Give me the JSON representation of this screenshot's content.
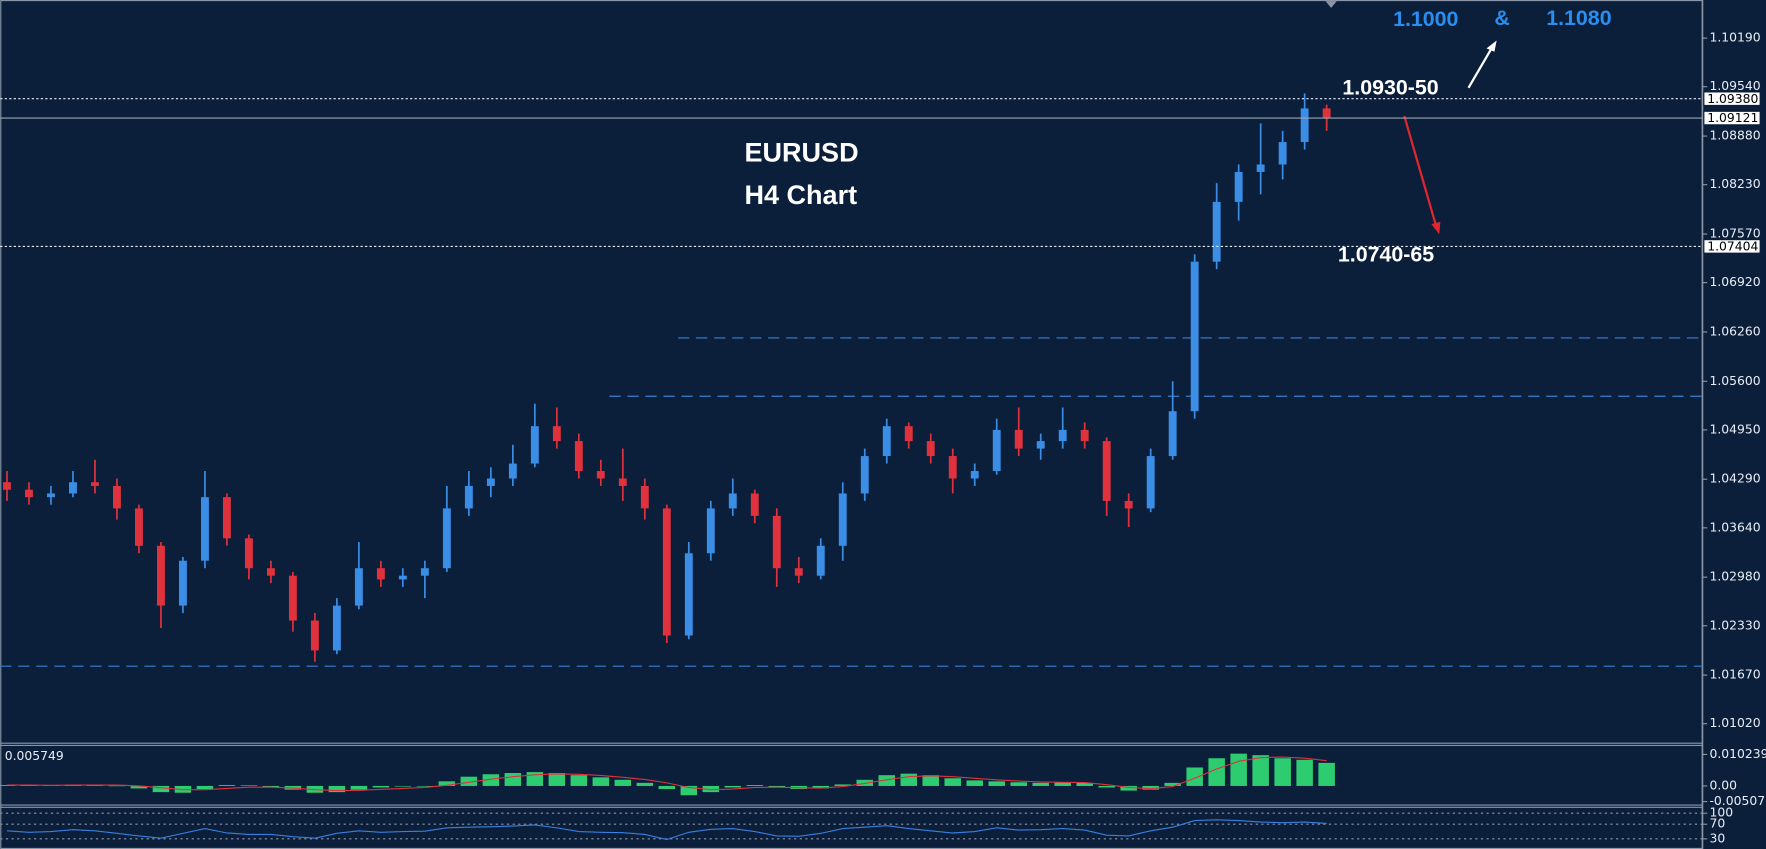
{
  "chart_data": [
    {
      "type": "candlestick",
      "title": "EURUSD",
      "subtitle": "H4 Chart",
      "up_color": "#3a8ee6",
      "down_color": "#e0323c",
      "candles": [
        [
          1.0425,
          1.044,
          1.04,
          1.0415
        ],
        [
          1.0415,
          1.0425,
          1.0395,
          1.0405
        ],
        [
          1.0405,
          1.042,
          1.0395,
          1.041
        ],
        [
          1.041,
          1.044,
          1.0405,
          1.0425
        ],
        [
          1.0425,
          1.0455,
          1.041,
          1.042
        ],
        [
          1.042,
          1.043,
          1.0375,
          1.039
        ],
        [
          1.039,
          1.0395,
          1.033,
          1.034
        ],
        [
          1.034,
          1.0345,
          1.023,
          1.026
        ],
        [
          1.026,
          1.0325,
          1.025,
          1.032
        ],
        [
          1.032,
          1.044,
          1.031,
          1.0405
        ],
        [
          1.0405,
          1.041,
          1.034,
          1.035
        ],
        [
          1.035,
          1.0355,
          1.0295,
          1.031
        ],
        [
          1.031,
          1.032,
          1.029,
          1.03
        ],
        [
          1.03,
          1.0305,
          1.0225,
          1.024
        ],
        [
          1.024,
          1.025,
          1.0185,
          1.02
        ],
        [
          1.02,
          1.027,
          1.0195,
          1.026
        ],
        [
          1.026,
          1.0345,
          1.0255,
          1.031
        ],
        [
          1.031,
          1.032,
          1.0285,
          1.0295
        ],
        [
          1.0295,
          1.031,
          1.0285,
          1.03
        ],
        [
          1.03,
          1.032,
          1.027,
          1.031
        ],
        [
          1.031,
          1.042,
          1.0305,
          1.039
        ],
        [
          1.039,
          1.044,
          1.038,
          1.042
        ],
        [
          1.042,
          1.0445,
          1.0405,
          1.043
        ],
        [
          1.043,
          1.0475,
          1.042,
          1.045
        ],
        [
          1.045,
          1.053,
          1.0445,
          1.05
        ],
        [
          1.05,
          1.0525,
          1.047,
          1.048
        ],
        [
          1.048,
          1.049,
          1.043,
          1.044
        ],
        [
          1.044,
          1.0455,
          1.042,
          1.043
        ],
        [
          1.043,
          1.047,
          1.04,
          1.042
        ],
        [
          1.042,
          1.043,
          1.0375,
          1.039
        ],
        [
          1.039,
          1.0395,
          1.021,
          1.022
        ],
        [
          1.022,
          1.0345,
          1.0215,
          1.033
        ],
        [
          1.033,
          1.04,
          1.032,
          1.039
        ],
        [
          1.039,
          1.043,
          1.038,
          1.041
        ],
        [
          1.041,
          1.0415,
          1.037,
          1.038
        ],
        [
          1.038,
          1.039,
          1.0285,
          1.031
        ],
        [
          1.031,
          1.0325,
          1.029,
          1.03
        ],
        [
          1.03,
          1.035,
          1.0295,
          1.034
        ],
        [
          1.034,
          1.0425,
          1.032,
          1.041
        ],
        [
          1.041,
          1.047,
          1.04,
          1.046
        ],
        [
          1.046,
          1.051,
          1.045,
          1.05
        ],
        [
          1.05,
          1.0505,
          1.047,
          1.048
        ],
        [
          1.048,
          1.049,
          1.045,
          1.046
        ],
        [
          1.046,
          1.047,
          1.041,
          1.043
        ],
        [
          1.043,
          1.045,
          1.042,
          1.044
        ],
        [
          1.044,
          1.051,
          1.0435,
          1.0495
        ],
        [
          1.0495,
          1.0525,
          1.046,
          1.047
        ],
        [
          1.047,
          1.049,
          1.0455,
          1.048
        ],
        [
          1.048,
          1.0525,
          1.047,
          1.0495
        ],
        [
          1.0495,
          1.0505,
          1.047,
          1.048
        ],
        [
          1.048,
          1.0485,
          1.038,
          1.04
        ],
        [
          1.04,
          1.041,
          1.0365,
          1.039
        ],
        [
          1.039,
          1.047,
          1.0385,
          1.046
        ],
        [
          1.046,
          1.056,
          1.0455,
          1.052
        ],
        [
          1.052,
          1.073,
          1.051,
          1.072
        ],
        [
          1.072,
          1.0825,
          1.071,
          1.08
        ],
        [
          1.08,
          1.085,
          1.0775,
          1.084
        ],
        [
          1.084,
          1.0905,
          1.081,
          1.085
        ],
        [
          1.085,
          1.0895,
          1.083,
          1.088
        ],
        [
          1.088,
          1.0945,
          1.087,
          1.0925
        ],
        [
          1.0925,
          1.093,
          1.0895,
          1.0912
        ]
      ],
      "ylim": [
        1.0076,
        1.107
      ],
      "yticks": [
        {
          "value": 1.1019,
          "label": "1.10190"
        },
        {
          "value": 1.0954,
          "label": "1.09540"
        },
        {
          "value": 1.0888,
          "label": "1.08880"
        },
        {
          "value": 1.0823,
          "label": "1.08230"
        },
        {
          "value": 1.0757,
          "label": "1.07570"
        },
        {
          "value": 1.0692,
          "label": "1.06920"
        },
        {
          "value": 1.0626,
          "label": "1.06260"
        },
        {
          "value": 1.056,
          "label": "1.05600"
        },
        {
          "value": 1.0495,
          "label": "1.04950"
        },
        {
          "value": 1.0429,
          "label": "1.04290"
        },
        {
          "value": 1.0364,
          "label": "1.03640"
        },
        {
          "value": 1.0298,
          "label": "1.02980"
        },
        {
          "value": 1.0233,
          "label": "1.02330"
        },
        {
          "value": 1.0167,
          "label": "1.01670"
        },
        {
          "value": 1.0102,
          "label": "1.01020"
        }
      ],
      "levels": [
        {
          "value": 1.0938,
          "label": "1.09380",
          "style": "dotted"
        },
        {
          "value": 1.09121,
          "label": "1.09121",
          "style": "solid"
        },
        {
          "value": 1.07404,
          "label": "1.07404",
          "style": "dotted"
        }
      ],
      "guide_levels": [
        1.0618,
        1.054,
        1.0179
      ],
      "guide_color": "#3a7fd5",
      "annotations": [
        "1.0930-50",
        "1.0740-65",
        "1.1000",
        "&",
        "1.1080"
      ]
    },
    {
      "type": "macd",
      "current_value_label": "0.005749",
      "histogram": {
        "color": "#2ecc71",
        "values": [
          0.0003,
          0.0002,
          0.0002,
          0.0004,
          0.0004,
          0.0001,
          -0.0008,
          -0.002,
          -0.0022,
          -0.001,
          0.0003,
          0.0002,
          -0.0005,
          -0.0012,
          -0.0022,
          -0.002,
          -0.0012,
          -0.0005,
          -0.0002,
          0,
          0.0015,
          0.003,
          0.0038,
          0.0042,
          0.0045,
          0.0042,
          0.0035,
          0.0028,
          0.002,
          0.001,
          -0.001,
          -0.003,
          -0.002,
          -0.0005,
          0.0003,
          -0.0005,
          -0.001,
          -0.0008,
          0.0005,
          0.002,
          0.0035,
          0.004,
          0.0035,
          0.0025,
          0.0018,
          0.0015,
          0.0012,
          0.001,
          0.0012,
          0.001,
          -0.0005,
          -0.0015,
          -0.0012,
          0.001,
          0.006,
          0.009,
          0.0105,
          0.01,
          0.009,
          0.0085,
          0.0075
        ]
      },
      "signal": {
        "color": "#e0323c",
        "values": [
          0.0003,
          0.0003,
          0.0002,
          0.0003,
          0.0003,
          0.0003,
          0,
          -0.0006,
          -0.0012,
          -0.0012,
          -0.0008,
          -0.0004,
          -0.0004,
          -0.0007,
          -0.0012,
          -0.0015,
          -0.0014,
          -0.0011,
          -0.0008,
          -0.0005,
          0.0002,
          0.0012,
          0.0022,
          0.003,
          0.0036,
          0.0039,
          0.0038,
          0.0034,
          0.0028,
          0.0021,
          0.001,
          -0.0005,
          -0.0012,
          -0.001,
          -0.0005,
          -0.0004,
          -0.0006,
          -0.0007,
          -0.0002,
          0.0008,
          0.002,
          0.003,
          0.0033,
          0.003,
          0.0025,
          0.002,
          0.0016,
          0.0013,
          0.0012,
          0.0011,
          0.0004,
          -0.0005,
          -0.0009,
          -0.0002,
          0.0025,
          0.0055,
          0.008,
          0.0092,
          0.0094,
          0.009,
          0.0082
        ]
      },
      "ylim": [
        -0.00585,
        0.01317
      ],
      "yticks": [
        0.010239,
        {
          "value": 0,
          "label": "0.00"
        },
        -0.00507
      ]
    },
    {
      "type": "line",
      "series": [
        {
          "color": "#3a7fe0",
          "values": [
            52,
            48,
            50,
            55,
            52,
            45,
            38,
            32,
            45,
            58,
            46,
            42,
            42,
            36,
            32,
            45,
            52,
            48,
            50,
            51,
            60,
            62,
            63,
            65,
            68,
            60,
            50,
            48,
            47,
            42,
            28,
            48,
            56,
            58,
            50,
            38,
            37,
            45,
            58,
            62,
            66,
            58,
            52,
            46,
            50,
            60,
            54,
            55,
            58,
            54,
            40,
            38,
            52,
            62,
            80,
            82,
            80,
            76,
            74,
            76,
            72
          ]
        }
      ],
      "ylim": [
        14.6,
        113
      ],
      "yticks": [
        100,
        70,
        30
      ],
      "grid": "dotted"
    }
  ]
}
